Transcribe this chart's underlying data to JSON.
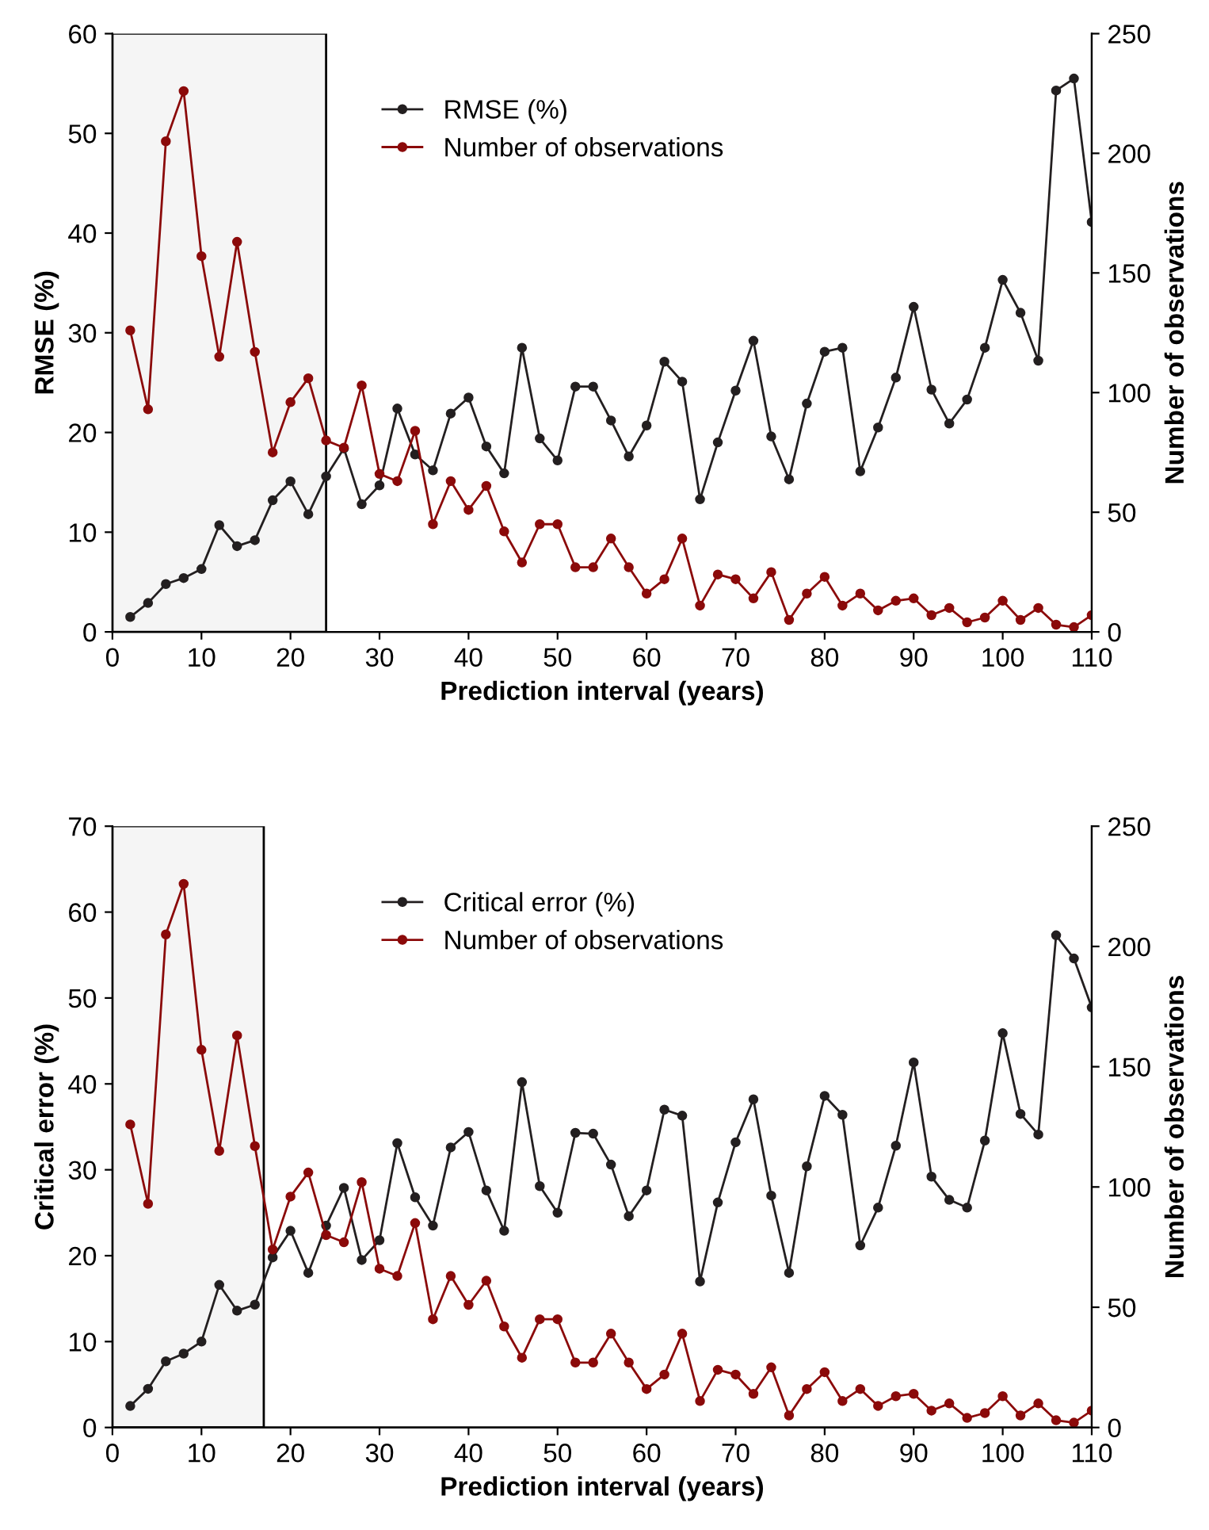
{
  "chart_data": [
    {
      "type": "line",
      "xlabel": "Prediction interval (years)",
      "ylabel": "RMSE (%)",
      "y2label": "Number of observations",
      "x": [
        2,
        4,
        6,
        8,
        10,
        12,
        14,
        16,
        18,
        20,
        22,
        24,
        26,
        28,
        30,
        32,
        34,
        36,
        38,
        40,
        42,
        44,
        46,
        48,
        50,
        52,
        54,
        56,
        58,
        60,
        62,
        64,
        66,
        68,
        70,
        72,
        74,
        76,
        78,
        80,
        82,
        84,
        86,
        88,
        90,
        92,
        94,
        96,
        98,
        100,
        102,
        104,
        106,
        108,
        110
      ],
      "series": [
        {
          "name": "RMSE (%)",
          "color": "#231f20",
          "values": [
            1.5,
            2.9,
            4.8,
            5.4,
            6.3,
            10.7,
            8.6,
            9.2,
            13.2,
            15.1,
            11.8,
            15.6,
            18.4,
            12.8,
            14.7,
            22.4,
            17.8,
            16.2,
            21.9,
            23.5,
            18.6,
            15.9,
            28.5,
            19.4,
            17.2,
            24.6,
            24.6,
            21.2,
            17.6,
            20.7,
            27.1,
            25.1,
            13.3,
            19.0,
            24.2,
            29.2,
            19.6,
            15.3,
            22.9,
            28.1,
            28.5,
            16.1,
            20.5,
            25.5,
            32.6,
            24.3,
            20.9,
            23.3,
            28.5,
            35.3,
            32.0,
            27.2,
            54.3,
            55.5,
            41.1
          ]
        },
        {
          "name": "Number of observations",
          "color": "#8b0a0a",
          "axis": "y2",
          "values": [
            126,
            93,
            205,
            226,
            157,
            115,
            163,
            117,
            75,
            96,
            106,
            80,
            77,
            103,
            66,
            63,
            84,
            45,
            63,
            51,
            61,
            42,
            29,
            45,
            45,
            27,
            27,
            39,
            27,
            16,
            22,
            39,
            11,
            24,
            22,
            14,
            25,
            5,
            16,
            23,
            11,
            16,
            9,
            13,
            14,
            7,
            10,
            4,
            6,
            13,
            5,
            10,
            3,
            2,
            7
          ]
        }
      ],
      "xlim": [
        0,
        110
      ],
      "xticks": [
        0,
        10,
        20,
        30,
        40,
        50,
        60,
        70,
        80,
        90,
        100,
        110
      ],
      "ylim": [
        0,
        60
      ],
      "yticks": [
        0,
        10,
        20,
        30,
        40,
        50,
        60
      ],
      "y2lim": [
        0,
        250
      ],
      "y2ticks": [
        0,
        50,
        100,
        150,
        200,
        250
      ],
      "bands": [
        {
          "axis": "x",
          "from": 0,
          "to": 24,
          "color": "#000000"
        }
      ],
      "marker": "circle",
      "line_style": "solid",
      "grid": false,
      "legend": "top"
    },
    {
      "type": "line",
      "xlabel": "Prediction interval (years)",
      "ylabel": "Critical error (%)",
      "y2label": "Number of observations",
      "x": [
        2,
        4,
        6,
        8,
        10,
        12,
        14,
        16,
        18,
        20,
        22,
        24,
        26,
        28,
        30,
        32,
        34,
        36,
        38,
        40,
        42,
        44,
        46,
        48,
        50,
        52,
        54,
        56,
        58,
        60,
        62,
        64,
        66,
        68,
        70,
        72,
        74,
        76,
        78,
        80,
        82,
        84,
        86,
        88,
        90,
        92,
        94,
        96,
        98,
        100,
        102,
        104,
        106,
        108,
        110
      ],
      "series": [
        {
          "name": "Critical error (%)",
          "color": "#231f20",
          "values": [
            2.5,
            4.5,
            7.7,
            8.6,
            10.0,
            16.6,
            13.6,
            14.3,
            19.8,
            22.9,
            18.0,
            23.5,
            27.9,
            19.5,
            21.8,
            33.1,
            26.8,
            23.5,
            32.6,
            34.4,
            27.6,
            22.9,
            40.2,
            28.1,
            25.0,
            34.3,
            34.2,
            30.6,
            24.6,
            27.6,
            37.0,
            36.3,
            17.0,
            26.2,
            33.2,
            38.2,
            27.0,
            18.0,
            30.4,
            38.6,
            36.4,
            21.2,
            25.6,
            32.8,
            42.5,
            29.2,
            26.5,
            25.6,
            33.4,
            45.9,
            36.5,
            34.1,
            57.3,
            54.6,
            48.9
          ]
        },
        {
          "name": "Number of observations",
          "color": "#8b0a0a",
          "axis": "y2",
          "values": [
            126,
            93,
            205,
            226,
            157,
            115,
            163,
            117,
            74,
            96,
            106,
            80,
            77,
            102,
            66,
            63,
            85,
            45,
            63,
            51,
            61,
            42,
            29,
            45,
            45,
            27,
            27,
            39,
            27,
            16,
            22,
            39,
            11,
            24,
            22,
            14,
            25,
            5,
            16,
            23,
            11,
            16,
            9,
            13,
            14,
            7,
            10,
            4,
            6,
            13,
            5,
            10,
            3,
            2,
            7
          ]
        }
      ],
      "xlim": [
        0,
        110
      ],
      "xticks": [
        0,
        10,
        20,
        30,
        40,
        50,
        60,
        70,
        80,
        90,
        100,
        110
      ],
      "ylim": [
        0,
        70
      ],
      "yticks": [
        0,
        10,
        20,
        30,
        40,
        50,
        60,
        70
      ],
      "y2lim": [
        0,
        250
      ],
      "y2ticks": [
        0,
        50,
        100,
        150,
        200,
        250
      ],
      "bands": [
        {
          "axis": "x",
          "from": 0,
          "to": 17,
          "color": "#000000"
        }
      ],
      "marker": "circle",
      "line_style": "solid",
      "grid": false,
      "legend": "top"
    }
  ]
}
